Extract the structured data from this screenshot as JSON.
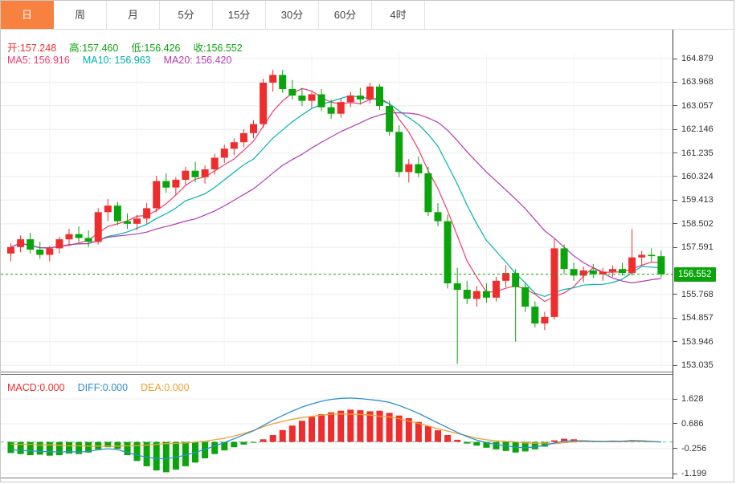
{
  "tabbar": {
    "tabs": [
      {
        "id": "day",
        "label": "日",
        "active": true
      },
      {
        "id": "week",
        "label": "周",
        "active": false
      },
      {
        "id": "month",
        "label": "月",
        "active": false
      },
      {
        "id": "5min",
        "label": "5分",
        "active": false
      },
      {
        "id": "15min",
        "label": "15分",
        "active": false
      },
      {
        "id": "30min",
        "label": "30分",
        "active": false
      },
      {
        "id": "60min",
        "label": "60分",
        "active": false
      },
      {
        "id": "4hour",
        "label": "4时",
        "active": false
      }
    ]
  },
  "colors": {
    "up": "#ef2d2d",
    "down": "#0aa50a",
    "ma5": "#ef3d6d",
    "ma10": "#00b2b2",
    "ma20": "#b43cb4",
    "diff": "#2e8ed6",
    "dea": "#f0a030",
    "grid": "#ececec",
    "vgrid": "#f3f3f3",
    "active_tab": "#f8813f",
    "dotted_price_line": "#0aa50a",
    "zero_dashed_line": "#5fc3c3",
    "badge_bg": "#0aa50a"
  },
  "legend_ohlc": [
    {
      "name": "ohlc-open",
      "text": "开:157.248",
      "color": "#ef2d2d"
    },
    {
      "name": "ohlc-high",
      "text": "高:157.460",
      "color": "#0aa50a"
    },
    {
      "name": "ohlc-low",
      "text": "低:156.426",
      "color": "#0aa50a"
    },
    {
      "name": "ohlc-close",
      "text": "收:156.552",
      "color": "#0aa50a"
    }
  ],
  "legend_ma": [
    {
      "name": "ma5-value",
      "text": "MA5: 156.916",
      "color": "#ef3d6d"
    },
    {
      "name": "ma10-value",
      "text": "MA10: 156.963",
      "color": "#00b2b2"
    },
    {
      "name": "ma20-value",
      "text": "MA20: 156.420",
      "color": "#b43cb4"
    }
  ],
  "legend_macd": [
    {
      "name": "macd-value",
      "text": "MACD:0.000",
      "color": "#ef2d2d"
    },
    {
      "name": "diff-value",
      "text": "DIFF:0.000",
      "color": "#2e8ed6"
    },
    {
      "name": "dea-value",
      "text": "DEA:0.000",
      "color": "#f0a030"
    }
  ],
  "price_badge": "156.552",
  "axis_main_ticks": [
    "164.879",
    "163.968",
    "163.057",
    "162.146",
    "161.235",
    "160.324",
    "159.413",
    "158.502",
    "157.591",
    "155.768",
    "154.857",
    "153.946",
    "153.035"
  ],
  "axis_macd_ticks": [
    "1.628",
    "0.686",
    "-0.256",
    "-1.199"
  ],
  "chart_data": {
    "type": "candlestick",
    "timeframe": "日",
    "last_bar": {
      "open": 157.248,
      "high": 157.46,
      "low": 156.426,
      "close": 156.552
    },
    "ma_values": {
      "MA5": 156.916,
      "MA10": 156.963,
      "MA20": 156.42
    },
    "macd_values": {
      "MACD": 0.0,
      "DIFF": 0.0,
      "DEA": 0.0
    },
    "y_axis_main_range": [
      152.8,
      166.0
    ],
    "y_axis_macd_range": [
      -1.35,
      2.55
    ],
    "current_price": 156.552,
    "candles": [
      [
        157.35,
        157.75,
        157.05,
        157.6
      ],
      [
        157.6,
        158.05,
        157.4,
        157.9
      ],
      [
        157.9,
        158.15,
        157.35,
        157.5
      ],
      [
        157.5,
        157.8,
        157.15,
        157.3
      ],
      [
        157.3,
        157.65,
        157.05,
        157.55
      ],
      [
        157.55,
        158.0,
        157.35,
        157.9
      ],
      [
        157.9,
        158.3,
        157.65,
        158.1
      ],
      [
        158.1,
        158.4,
        157.8,
        157.95
      ],
      [
        157.95,
        158.25,
        157.6,
        157.8
      ],
      [
        157.8,
        159.1,
        157.7,
        158.95
      ],
      [
        158.95,
        159.45,
        158.6,
        159.2
      ],
      [
        159.2,
        159.35,
        158.45,
        158.6
      ],
      [
        158.6,
        158.9,
        158.3,
        158.5
      ],
      [
        158.5,
        158.85,
        158.25,
        158.7
      ],
      [
        158.7,
        159.3,
        158.5,
        159.1
      ],
      [
        159.1,
        160.35,
        158.95,
        160.15
      ],
      [
        160.15,
        160.45,
        159.7,
        159.9
      ],
      [
        159.9,
        160.3,
        159.6,
        160.2
      ],
      [
        160.2,
        160.7,
        160.0,
        160.55
      ],
      [
        160.55,
        160.9,
        160.1,
        160.3
      ],
      [
        160.3,
        160.75,
        160.05,
        160.6
      ],
      [
        160.6,
        161.2,
        160.4,
        161.05
      ],
      [
        161.05,
        161.55,
        160.85,
        161.4
      ],
      [
        161.4,
        161.8,
        161.15,
        161.65
      ],
      [
        161.65,
        162.15,
        161.45,
        162.0
      ],
      [
        162.0,
        162.5,
        161.8,
        162.35
      ],
      [
        162.35,
        164.1,
        162.2,
        163.95
      ],
      [
        163.95,
        164.45,
        163.6,
        164.25
      ],
      [
        164.25,
        164.45,
        163.55,
        163.7
      ],
      [
        163.7,
        164.05,
        163.3,
        163.45
      ],
      [
        163.45,
        163.75,
        163.05,
        163.25
      ],
      [
        163.25,
        163.6,
        162.95,
        163.5
      ],
      [
        163.5,
        163.7,
        162.85,
        163.0
      ],
      [
        163.0,
        163.3,
        162.55,
        162.75
      ],
      [
        162.75,
        163.35,
        162.6,
        163.2
      ],
      [
        163.2,
        163.6,
        163.0,
        163.45
      ],
      [
        163.45,
        163.75,
        163.1,
        163.3
      ],
      [
        163.3,
        163.95,
        163.15,
        163.8
      ],
      [
        163.8,
        163.9,
        162.9,
        163.05
      ],
      [
        163.05,
        163.25,
        161.9,
        162.05
      ],
      [
        162.05,
        162.3,
        160.3,
        160.5
      ],
      [
        160.5,
        161.0,
        160.1,
        160.8
      ],
      [
        160.8,
        161.1,
        160.3,
        160.45
      ],
      [
        160.45,
        160.7,
        158.8,
        158.95
      ],
      [
        158.95,
        159.3,
        158.4,
        158.6
      ],
      [
        158.6,
        158.85,
        156.0,
        156.2
      ],
      [
        156.2,
        156.8,
        153.09,
        155.95
      ],
      [
        155.95,
        156.3,
        155.4,
        155.6
      ],
      [
        155.6,
        156.1,
        155.3,
        155.9
      ],
      [
        155.9,
        156.2,
        155.45,
        155.65
      ],
      [
        155.65,
        156.45,
        155.5,
        156.3
      ],
      [
        156.3,
        156.9,
        156.05,
        156.6
      ],
      [
        156.6,
        156.75,
        153.95,
        156.05
      ],
      [
        156.05,
        156.25,
        155.1,
        155.3
      ],
      [
        155.3,
        155.5,
        154.5,
        154.65
      ],
      [
        154.65,
        155.1,
        154.4,
        154.9
      ],
      [
        154.9,
        157.9,
        154.8,
        157.55
      ],
      [
        157.55,
        157.7,
        156.55,
        156.75
      ],
      [
        156.75,
        157.0,
        156.3,
        156.5
      ],
      [
        156.5,
        156.85,
        156.25,
        156.7
      ],
      [
        156.7,
        156.95,
        156.4,
        156.55
      ],
      [
        156.55,
        156.8,
        156.3,
        156.65
      ],
      [
        156.65,
        156.9,
        156.45,
        156.75
      ],
      [
        156.75,
        157.0,
        156.5,
        156.6
      ],
      [
        156.6,
        158.3,
        156.5,
        157.2
      ],
      [
        157.2,
        157.45,
        156.9,
        157.3
      ],
      [
        157.3,
        157.55,
        157.05,
        157.25
      ],
      [
        157.248,
        157.46,
        156.426,
        156.552
      ]
    ],
    "macd_hist": [
      -0.42,
      -0.46,
      -0.5,
      -0.48,
      -0.52,
      -0.5,
      -0.44,
      -0.46,
      -0.4,
      -0.28,
      -0.2,
      -0.26,
      -0.5,
      -0.72,
      -0.92,
      -1.08,
      -1.15,
      -1.05,
      -0.92,
      -0.78,
      -0.62,
      -0.46,
      -0.32,
      -0.2,
      -0.1,
      -0.03,
      0.1,
      0.26,
      0.45,
      0.62,
      0.8,
      0.95,
      1.05,
      1.12,
      1.18,
      1.22,
      1.2,
      1.16,
      1.18,
      1.1,
      1.0,
      0.9,
      0.76,
      0.6,
      0.44,
      0.26,
      0.08,
      -0.06,
      -0.14,
      -0.22,
      -0.28,
      -0.34,
      -0.4,
      -0.36,
      -0.28,
      -0.18,
      0.06,
      0.12,
      0.1,
      0.06,
      0.04,
      0.03,
      0.05,
      0.04,
      0.07,
      0.05,
      0.03,
      0.0
    ],
    "macd_diff": [
      -0.3,
      -0.32,
      -0.34,
      -0.36,
      -0.37,
      -0.38,
      -0.37,
      -0.38,
      -0.36,
      -0.3,
      -0.26,
      -0.29,
      -0.4,
      -0.5,
      -0.58,
      -0.63,
      -0.64,
      -0.58,
      -0.5,
      -0.4,
      -0.28,
      -0.15,
      -0.02,
      0.12,
      0.27,
      0.42,
      0.62,
      0.82,
      1.0,
      1.17,
      1.32,
      1.44,
      1.54,
      1.61,
      1.65,
      1.66,
      1.64,
      1.6,
      1.56,
      1.5,
      1.38,
      1.24,
      1.08,
      0.9,
      0.72,
      0.54,
      0.36,
      0.2,
      0.07,
      -0.03,
      -0.1,
      -0.15,
      -0.2,
      -0.22,
      -0.19,
      -0.13,
      -0.04,
      0.03,
      0.05,
      0.04,
      0.03,
      0.02,
      0.03,
      0.03,
      0.05,
      0.04,
      0.02,
      0.0
    ]
  }
}
